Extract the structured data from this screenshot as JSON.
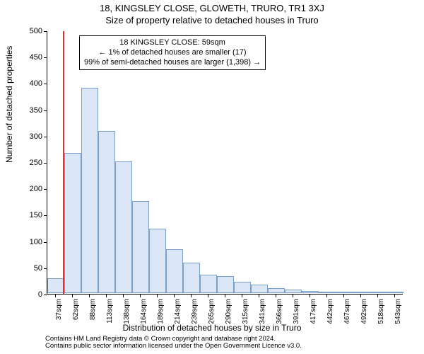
{
  "header": {
    "line1": "18, KINGSLEY CLOSE, GLOWETH, TRURO, TR1 3XJ",
    "line2": "Size of property relative to detached houses in Truro"
  },
  "chart": {
    "type": "histogram",
    "ylabel": "Number of detached properties",
    "xlabel": "Distribution of detached houses by size in Truro",
    "ylim": [
      0,
      500
    ],
    "ytick_step": 50,
    "yticks": [
      0,
      50,
      100,
      150,
      200,
      250,
      300,
      350,
      400,
      450,
      500
    ],
    "xticks": [
      "37sqm",
      "62sqm",
      "88sqm",
      "113sqm",
      "138sqm",
      "164sqm",
      "189sqm",
      "214sqm",
      "239sqm",
      "265sqm",
      "290sqm",
      "315sqm",
      "341sqm",
      "366sqm",
      "391sqm",
      "417sqm",
      "442sqm",
      "467sqm",
      "492sqm",
      "518sqm",
      "543sqm"
    ],
    "bar_fill": "#dbe7f6",
    "bar_stroke": "#7a9fcb",
    "refline_color": "#e03030",
    "refline_x_index": 0.9,
    "values": [
      28,
      266,
      390,
      308,
      250,
      175,
      122,
      83,
      58,
      35,
      32,
      22,
      16,
      10,
      7,
      4,
      3,
      2,
      1,
      1,
      1
    ],
    "background_color": "#ffffff",
    "axis_color": "#000000",
    "tick_fontsize": 11,
    "label_fontsize": 12,
    "title_fontsize": 13
  },
  "annotation": {
    "line1": "18 KINGSLEY CLOSE: 59sqm",
    "line2": "← 1% of detached houses are smaller (17)",
    "line3": "99% of semi-detached houses are larger (1,398) →"
  },
  "footer": {
    "line1": "Contains HM Land Registry data © Crown copyright and database right 2024.",
    "line2": "Contains public sector information licensed under the Open Government Licence v3.0."
  }
}
